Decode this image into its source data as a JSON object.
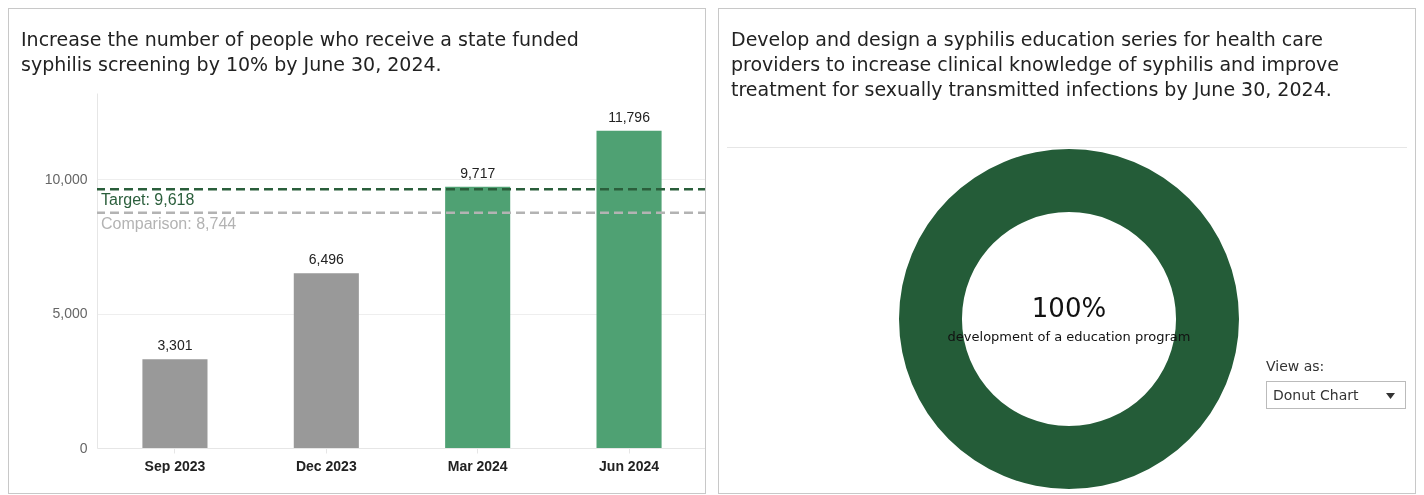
{
  "chart_data": [
    {
      "type": "bar",
      "title": "Increase the number of people who receive a state funded syphilis screening by 10% by June 30, 2024.",
      "categories": [
        "Sep 2023",
        "Dec 2023",
        "Mar 2024",
        "Jun 2024"
      ],
      "values": [
        3301,
        6496,
        9717,
        11796
      ],
      "colors": [
        "#999999",
        "#999999",
        "#4fa173",
        "#4fa173"
      ],
      "ylim": [
        0,
        13200
      ],
      "yticks": [
        {
          "value": 0,
          "label": "0"
        },
        {
          "value": 5000,
          "label": "5,000"
        },
        {
          "value": 10000,
          "label": "10,000"
        }
      ],
      "grid": "y",
      "value_labels": [
        "3,301",
        "6,496",
        "9,717",
        "11,796"
      ],
      "ref_lines": [
        {
          "axis": "y",
          "value": 9618,
          "label": "Target: 9,618",
          "color": "#2a5e3b",
          "line_style": "dashed"
        },
        {
          "axis": "y",
          "value": 8744,
          "label": "Comparison: 8,744",
          "color": "#b3b3b3",
          "line_style": "dashed"
        }
      ]
    },
    {
      "type": "donut",
      "title": "Develop and design a syphilis education series for health care providers to increase clinical knowledge of syphilis and improve treatment for sexually transmitted infections by June 30, 2024.",
      "categories": [
        "development of a education program"
      ],
      "values": [
        100
      ],
      "colors": [
        "#245c38"
      ],
      "value_labels": [
        "100%"
      ],
      "annotations": [
        "View as:",
        "Donut Chart"
      ]
    }
  ]
}
